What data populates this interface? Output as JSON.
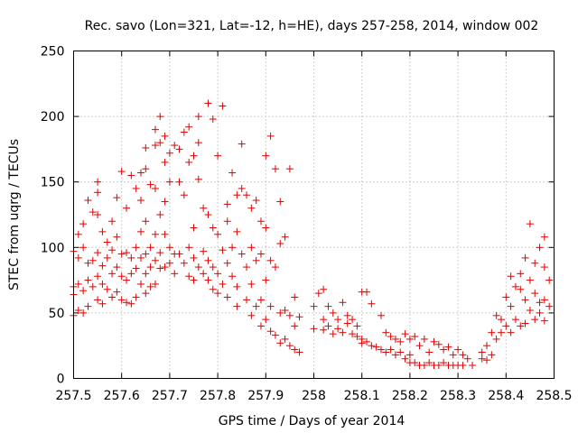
{
  "chart_data": {
    "type": "scatter",
    "title": "Rec. savo (Lon=321, Lat=-12, h=HE), days 257-258, 2014, window 002",
    "xlabel": "GPS time / Days of year 2014",
    "ylabel": "STEC from uqrg / TECUs",
    "xlim": [
      257.5,
      258.5
    ],
    "ylim": [
      0,
      250
    ],
    "xticks": [
      "257.5",
      "257.6",
      "257.7",
      "257.8",
      "257.9",
      "258",
      "258.1",
      "258.2",
      "258.3",
      "258.4",
      "258.5"
    ],
    "yticks": [
      "0",
      "50",
      "100",
      "150",
      "200",
      "250"
    ],
    "grid": true,
    "marker": "+",
    "color": "#e00000",
    "series": [
      {
        "name": "",
        "points": [
          [
            257.5,
            97
          ],
          [
            257.5,
            70
          ],
          [
            257.5,
            64
          ],
          [
            257.5,
            48
          ],
          [
            257.51,
            110
          ],
          [
            257.51,
            92
          ],
          [
            257.51,
            72
          ],
          [
            257.51,
            52
          ],
          [
            257.52,
            118
          ],
          [
            257.52,
            100
          ],
          [
            257.52,
            67
          ],
          [
            257.52,
            50
          ],
          [
            257.53,
            136
          ],
          [
            257.53,
            88
          ],
          [
            257.53,
            75
          ],
          [
            257.53,
            55
          ],
          [
            257.54,
            127
          ],
          [
            257.54,
            90
          ],
          [
            257.54,
            70
          ],
          [
            257.55,
            150
          ],
          [
            257.55,
            142
          ],
          [
            257.55,
            125
          ],
          [
            257.55,
            96
          ],
          [
            257.55,
            78
          ],
          [
            257.55,
            60
          ],
          [
            257.56,
            112
          ],
          [
            257.56,
            86
          ],
          [
            257.56,
            72
          ],
          [
            257.56,
            57
          ],
          [
            257.57,
            104
          ],
          [
            257.57,
            92
          ],
          [
            257.57,
            68
          ],
          [
            257.58,
            120
          ],
          [
            257.58,
            98
          ],
          [
            257.58,
            80
          ],
          [
            257.58,
            62
          ],
          [
            257.59,
            138
          ],
          [
            257.59,
            108
          ],
          [
            257.59,
            85
          ],
          [
            257.59,
            66
          ],
          [
            257.6,
            158
          ],
          [
            257.6,
            95
          ],
          [
            257.6,
            78
          ],
          [
            257.6,
            60
          ],
          [
            257.61,
            130
          ],
          [
            257.61,
            96
          ],
          [
            257.61,
            75
          ],
          [
            257.61,
            58
          ],
          [
            257.62,
            155
          ],
          [
            257.62,
            92
          ],
          [
            257.62,
            80
          ],
          [
            257.62,
            57
          ],
          [
            257.63,
            145
          ],
          [
            257.63,
            100
          ],
          [
            257.63,
            84
          ],
          [
            257.63,
            62
          ],
          [
            257.64,
            157
          ],
          [
            257.64,
            136
          ],
          [
            257.64,
            112
          ],
          [
            257.64,
            92
          ],
          [
            257.64,
            72
          ],
          [
            257.65,
            176
          ],
          [
            257.65,
            160
          ],
          [
            257.65,
            120
          ],
          [
            257.65,
            95
          ],
          [
            257.65,
            80
          ],
          [
            257.65,
            65
          ],
          [
            257.66,
            148
          ],
          [
            257.66,
            100
          ],
          [
            257.66,
            85
          ],
          [
            257.66,
            70
          ],
          [
            257.67,
            190
          ],
          [
            257.67,
            178
          ],
          [
            257.67,
            145
          ],
          [
            257.67,
            110
          ],
          [
            257.67,
            90
          ],
          [
            257.67,
            72
          ],
          [
            257.68,
            200
          ],
          [
            257.68,
            180
          ],
          [
            257.68,
            125
          ],
          [
            257.68,
            96
          ],
          [
            257.68,
            84
          ],
          [
            257.69,
            185
          ],
          [
            257.69,
            165
          ],
          [
            257.69,
            135
          ],
          [
            257.69,
            110
          ],
          [
            257.69,
            85
          ],
          [
            257.7,
            172
          ],
          [
            257.7,
            150
          ],
          [
            257.7,
            100
          ],
          [
            257.7,
            88
          ],
          [
            257.71,
            178
          ],
          [
            257.71,
            95
          ],
          [
            257.71,
            80
          ],
          [
            257.72,
            175
          ],
          [
            257.72,
            150
          ],
          [
            257.72,
            95
          ],
          [
            257.73,
            188
          ],
          [
            257.73,
            140
          ],
          [
            257.73,
            88
          ],
          [
            257.74,
            192
          ],
          [
            257.74,
            165
          ],
          [
            257.74,
            100
          ],
          [
            257.74,
            78
          ],
          [
            257.75,
            170
          ],
          [
            257.75,
            115
          ],
          [
            257.75,
            92
          ],
          [
            257.75,
            75
          ],
          [
            257.76,
            200
          ],
          [
            257.76,
            180
          ],
          [
            257.76,
            152
          ],
          [
            257.76,
            85
          ],
          [
            257.77,
            130
          ],
          [
            257.77,
            97
          ],
          [
            257.77,
            80
          ],
          [
            257.78,
            210
          ],
          [
            257.78,
            125
          ],
          [
            257.78,
            90
          ],
          [
            257.78,
            75
          ],
          [
            257.79,
            198
          ],
          [
            257.79,
            115
          ],
          [
            257.79,
            85
          ],
          [
            257.79,
            68
          ],
          [
            257.8,
            170
          ],
          [
            257.8,
            110
          ],
          [
            257.8,
            80
          ],
          [
            257.8,
            65
          ],
          [
            257.81,
            208
          ],
          [
            257.81,
            98
          ],
          [
            257.81,
            72
          ],
          [
            257.82,
            133
          ],
          [
            257.82,
            120
          ],
          [
            257.82,
            88
          ],
          [
            257.82,
            62
          ],
          [
            257.83,
            157
          ],
          [
            257.83,
            100
          ],
          [
            257.83,
            78
          ],
          [
            257.84,
            140
          ],
          [
            257.84,
            112
          ],
          [
            257.84,
            70
          ],
          [
            257.84,
            55
          ],
          [
            257.85,
            179
          ],
          [
            257.85,
            145
          ],
          [
            257.85,
            95
          ],
          [
            257.86,
            140
          ],
          [
            257.86,
            85
          ],
          [
            257.86,
            60
          ],
          [
            257.87,
            130
          ],
          [
            257.87,
            100
          ],
          [
            257.87,
            72
          ],
          [
            257.87,
            48
          ],
          [
            257.88,
            136
          ],
          [
            257.88,
            90
          ],
          [
            257.88,
            55
          ],
          [
            257.89,
            120
          ],
          [
            257.89,
            95
          ],
          [
            257.89,
            60
          ],
          [
            257.89,
            40
          ],
          [
            257.9,
            170
          ],
          [
            257.9,
            115
          ],
          [
            257.9,
            75
          ],
          [
            257.9,
            45
          ],
          [
            257.91,
            185
          ],
          [
            257.91,
            90
          ],
          [
            257.91,
            55
          ],
          [
            257.91,
            36
          ],
          [
            257.92,
            160
          ],
          [
            257.92,
            85
          ],
          [
            257.92,
            33
          ],
          [
            257.93,
            135
          ],
          [
            257.93,
            103
          ],
          [
            257.93,
            50
          ],
          [
            257.93,
            27
          ],
          [
            257.94,
            108
          ],
          [
            257.94,
            52
          ],
          [
            257.94,
            30
          ],
          [
            257.95,
            160
          ],
          [
            257.95,
            48
          ],
          [
            257.95,
            25
          ],
          [
            257.96,
            62
          ],
          [
            257.96,
            40
          ],
          [
            257.96,
            22
          ],
          [
            257.97,
            47
          ],
          [
            257.97,
            20
          ],
          [
            258.0,
            55
          ],
          [
            258.0,
            38
          ],
          [
            258.01,
            65
          ],
          [
            258.02,
            68
          ],
          [
            258.02,
            45
          ],
          [
            258.02,
            37
          ],
          [
            258.03,
            55
          ],
          [
            258.03,
            40
          ],
          [
            258.04,
            50
          ],
          [
            258.04,
            34
          ],
          [
            258.05,
            45
          ],
          [
            258.05,
            38
          ],
          [
            258.06,
            58
          ],
          [
            258.06,
            35
          ],
          [
            258.07,
            48
          ],
          [
            258.07,
            42
          ],
          [
            258.08,
            45
          ],
          [
            258.08,
            34
          ],
          [
            258.09,
            40
          ],
          [
            258.09,
            32
          ],
          [
            258.1,
            66
          ],
          [
            258.1,
            30
          ],
          [
            258.1,
            27
          ],
          [
            258.11,
            66
          ],
          [
            258.11,
            28
          ],
          [
            258.12,
            57
          ],
          [
            258.12,
            25
          ],
          [
            258.13,
            24
          ],
          [
            258.14,
            48
          ],
          [
            258.14,
            22
          ],
          [
            258.15,
            35
          ],
          [
            258.15,
            20
          ],
          [
            258.16,
            32
          ],
          [
            258.16,
            22
          ],
          [
            258.17,
            30
          ],
          [
            258.17,
            18
          ],
          [
            258.18,
            28
          ],
          [
            258.18,
            20
          ],
          [
            258.19,
            34
          ],
          [
            258.19,
            15
          ],
          [
            258.2,
            30
          ],
          [
            258.2,
            18
          ],
          [
            258.2,
            12
          ],
          [
            258.21,
            32
          ],
          [
            258.21,
            12
          ],
          [
            258.22,
            25
          ],
          [
            258.22,
            10
          ],
          [
            258.23,
            30
          ],
          [
            258.23,
            10
          ],
          [
            258.24,
            20
          ],
          [
            258.24,
            12
          ],
          [
            258.25,
            28
          ],
          [
            258.25,
            10
          ],
          [
            258.26,
            26
          ],
          [
            258.26,
            10
          ],
          [
            258.27,
            22
          ],
          [
            258.27,
            12
          ],
          [
            258.28,
            24
          ],
          [
            258.28,
            10
          ],
          [
            258.29,
            18
          ],
          [
            258.29,
            10
          ],
          [
            258.3,
            22
          ],
          [
            258.3,
            10
          ],
          [
            258.31,
            18
          ],
          [
            258.31,
            10
          ],
          [
            258.32,
            15
          ],
          [
            258.33,
            10
          ],
          [
            258.35,
            20
          ],
          [
            258.35,
            15
          ],
          [
            258.36,
            25
          ],
          [
            258.36,
            14
          ],
          [
            258.37,
            35
          ],
          [
            258.37,
            18
          ],
          [
            258.38,
            48
          ],
          [
            258.38,
            30
          ],
          [
            258.39,
            45
          ],
          [
            258.39,
            35
          ],
          [
            258.4,
            62
          ],
          [
            258.4,
            40
          ],
          [
            258.41,
            78
          ],
          [
            258.41,
            55
          ],
          [
            258.41,
            35
          ],
          [
            258.42,
            70
          ],
          [
            258.42,
            45
          ],
          [
            258.43,
            80
          ],
          [
            258.43,
            68
          ],
          [
            258.43,
            40
          ],
          [
            258.44,
            92
          ],
          [
            258.44,
            60
          ],
          [
            258.44,
            42
          ],
          [
            258.45,
            118
          ],
          [
            258.45,
            75
          ],
          [
            258.45,
            52
          ],
          [
            258.46,
            88
          ],
          [
            258.46,
            65
          ],
          [
            258.46,
            45
          ],
          [
            258.47,
            100
          ],
          [
            258.47,
            58
          ],
          [
            258.47,
            50
          ],
          [
            258.48,
            108
          ],
          [
            258.48,
            85
          ],
          [
            258.48,
            60
          ],
          [
            258.48,
            44
          ],
          [
            258.49,
            75
          ],
          [
            258.49,
            55
          ]
        ]
      }
    ]
  }
}
